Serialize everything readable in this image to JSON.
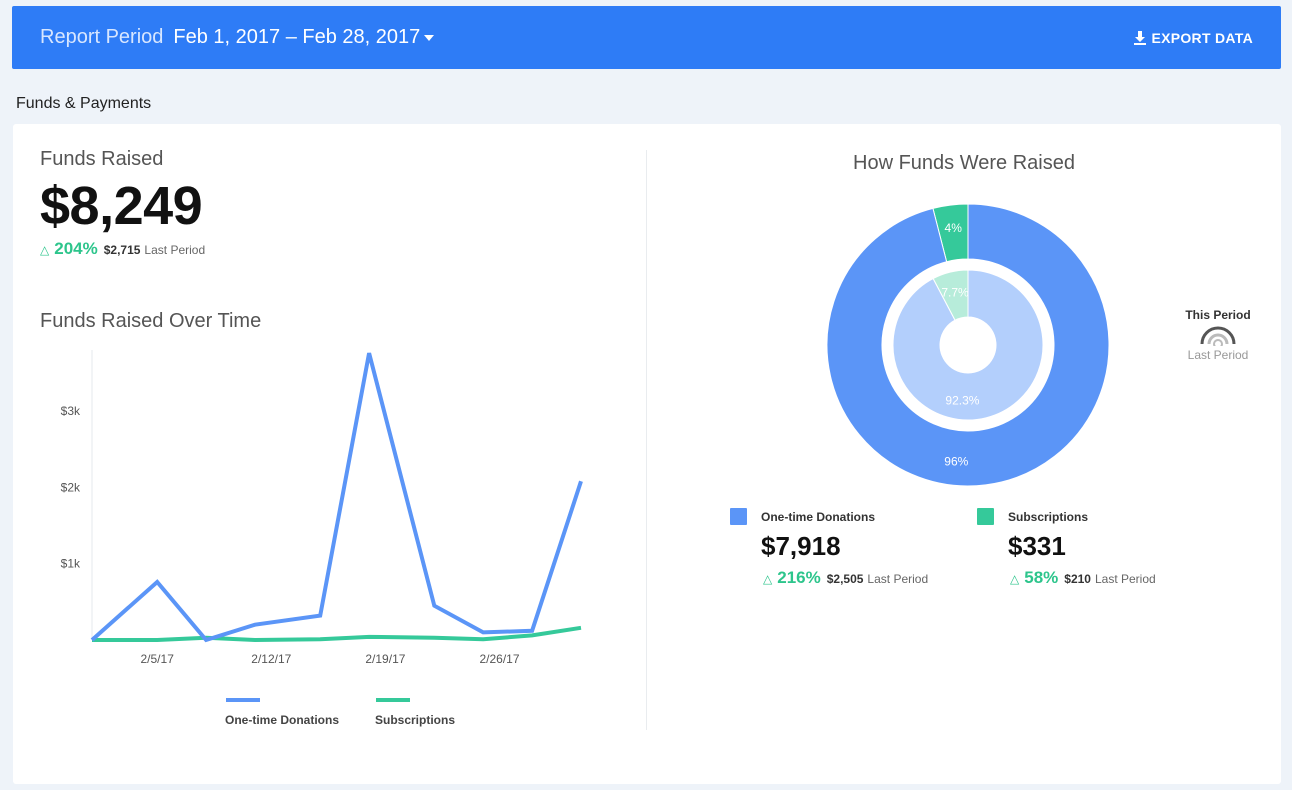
{
  "header": {
    "report_period_label": "Report Period",
    "report_period_value": "Feb 1, 2017 – Feb 28, 2017",
    "export_label": "EXPORT DATA",
    "bg_color": "#2e7cf6"
  },
  "section": {
    "title": "Funds & Payments"
  },
  "funds_raised": {
    "label": "Funds Raised",
    "amount": "$8,249",
    "delta_pct": "204%",
    "last_amount": "$2,715",
    "last_label": "Last Period"
  },
  "line_chart": {
    "title": "Funds Raised Over Time"
  },
  "donut": {
    "title": "How Funds Were Raised",
    "this_period_label": "This Period",
    "last_period_label": "Last Period"
  },
  "breakdown": [
    {
      "name": "One-time Donations",
      "amount": "$7,918",
      "delta_pct": "216%",
      "last_amount": "$2,505",
      "last_label": "Last Period",
      "color": "#5b95f7"
    },
    {
      "name": "Subscriptions",
      "amount": "$331",
      "delta_pct": "58%",
      "last_amount": "$210",
      "last_label": "Last Period",
      "color": "#35c99a"
    }
  ],
  "colors": {
    "blue": "#5b95f7",
    "green": "#35c99a",
    "delta_green": "#2dc58c"
  },
  "chart_data": [
    {
      "type": "line",
      "title": "Funds Raised Over Time",
      "x_tick_labels": [
        "2/5/17",
        "2/12/17",
        "2/19/17",
        "2/26/17"
      ],
      "x_tick_days": [
        5,
        12,
        19,
        26
      ],
      "y_tick_labels": [
        "$1k",
        "$2k",
        "$3k"
      ],
      "y_tick_values": [
        1000,
        2000,
        3000
      ],
      "ylim": [
        0,
        3800
      ],
      "xlim": [
        1,
        28
      ],
      "series": [
        {
          "name": "One-time Donations",
          "color": "#5b95f7",
          "x": [
            1,
            5,
            8,
            11,
            15,
            18,
            22,
            25,
            28,
            31
          ],
          "y": [
            0,
            760,
            0,
            200,
            320,
            3760,
            450,
            100,
            120,
            2080
          ]
        },
        {
          "name": "Subscriptions",
          "color": "#35c99a",
          "x": [
            1,
            5,
            8,
            11,
            15,
            18,
            22,
            25,
            28,
            31
          ],
          "y": [
            0,
            0,
            30,
            0,
            10,
            40,
            30,
            10,
            60,
            160
          ]
        }
      ]
    },
    {
      "type": "pie",
      "title": "How Funds Were Raised",
      "rings": [
        {
          "name": "This Period",
          "labels": [
            "One-time Donations",
            "Subscriptions"
          ],
          "values": [
            96,
            4
          ],
          "value_labels": [
            "96%",
            "4%"
          ]
        },
        {
          "name": "Last Period",
          "labels": [
            "One-time Donations",
            "Subscriptions"
          ],
          "values": [
            92.3,
            7.7
          ],
          "value_labels": [
            "92.3%",
            "7.7%"
          ]
        }
      ]
    }
  ]
}
